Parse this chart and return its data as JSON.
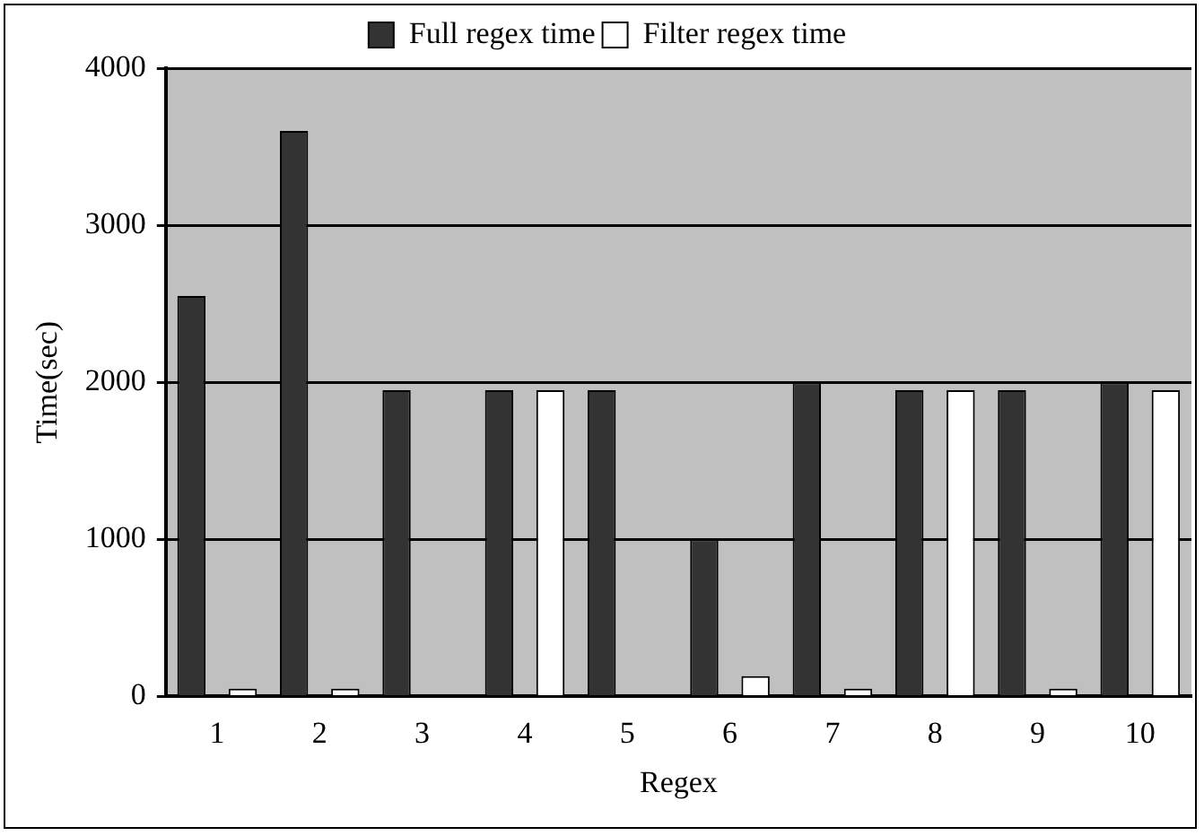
{
  "chart_data": {
    "type": "bar",
    "xlabel": "Regex",
    "ylabel": "Time(sec)",
    "categories": [
      "1",
      "2",
      "3",
      "4",
      "5",
      "6",
      "7",
      "8",
      "9",
      "10"
    ],
    "series": [
      {
        "name": "Full regex time",
        "color": "#333333",
        "values": [
          2550,
          3600,
          1950,
          1950,
          1950,
          1000,
          2000,
          1950,
          1950,
          2000
        ]
      },
      {
        "name": "Filter regex time",
        "color": "#ffffff",
        "values": [
          50,
          50,
          0,
          1950,
          0,
          130,
          50,
          1950,
          50,
          1950
        ]
      }
    ],
    "ylim": [
      0,
      4000
    ],
    "yticks": [
      0,
      1000,
      2000,
      3000,
      4000
    ],
    "grid": "y",
    "legend": "top"
  }
}
